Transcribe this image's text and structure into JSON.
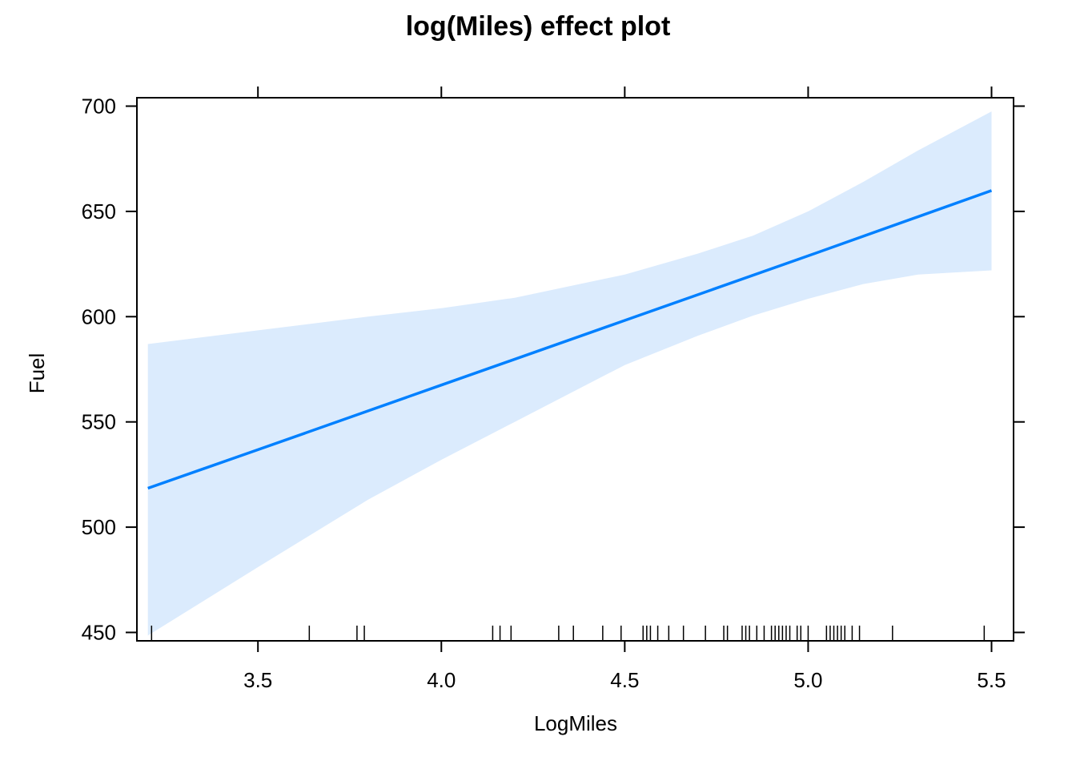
{
  "chart_data": {
    "type": "line",
    "title": "log(Miles) effect plot",
    "xlabel": "LogMiles",
    "ylabel": "Fuel",
    "xlim": [
      3.17,
      5.56
    ],
    "ylim": [
      446,
      704
    ],
    "xticks": [
      3.5,
      4.0,
      4.5,
      5.0,
      5.5
    ],
    "yticks": [
      450,
      500,
      550,
      600,
      650,
      700
    ],
    "grid": false,
    "legend": "none",
    "series": [
      {
        "x": [
          3.2,
          3.5,
          4.0,
          4.5,
          5.0,
          5.5
        ],
        "values": [
          518.5,
          536.8,
          567.5,
          598.2,
          628.9,
          659.9
        ],
        "color": "#0080ff"
      }
    ],
    "confidence_band": {
      "x": [
        3.2,
        3.5,
        3.8,
        4.0,
        4.2,
        4.5,
        4.7,
        4.85,
        5.0,
        5.15,
        5.3,
        5.5
      ],
      "upper": [
        587,
        593.5,
        600,
        604,
        609,
        620,
        630,
        638.5,
        650,
        664,
        679,
        697.5
      ],
      "lower": [
        448.5,
        481,
        513,
        532,
        550,
        577,
        591,
        600.5,
        608.5,
        615.5,
        620,
        622
      ],
      "color": "#dbebfd"
    },
    "rug": [
      3.21,
      3.64,
      3.77,
      3.79,
      4.14,
      4.16,
      4.19,
      4.32,
      4.36,
      4.44,
      4.49,
      4.55,
      4.56,
      4.57,
      4.59,
      4.62,
      4.66,
      4.72,
      4.77,
      4.78,
      4.82,
      4.83,
      4.84,
      4.86,
      4.88,
      4.9,
      4.91,
      4.92,
      4.93,
      4.94,
      4.95,
      4.97,
      4.98,
      5.0,
      5.05,
      5.06,
      5.07,
      5.08,
      5.09,
      5.1,
      5.12,
      5.14,
      5.23,
      5.48
    ]
  }
}
